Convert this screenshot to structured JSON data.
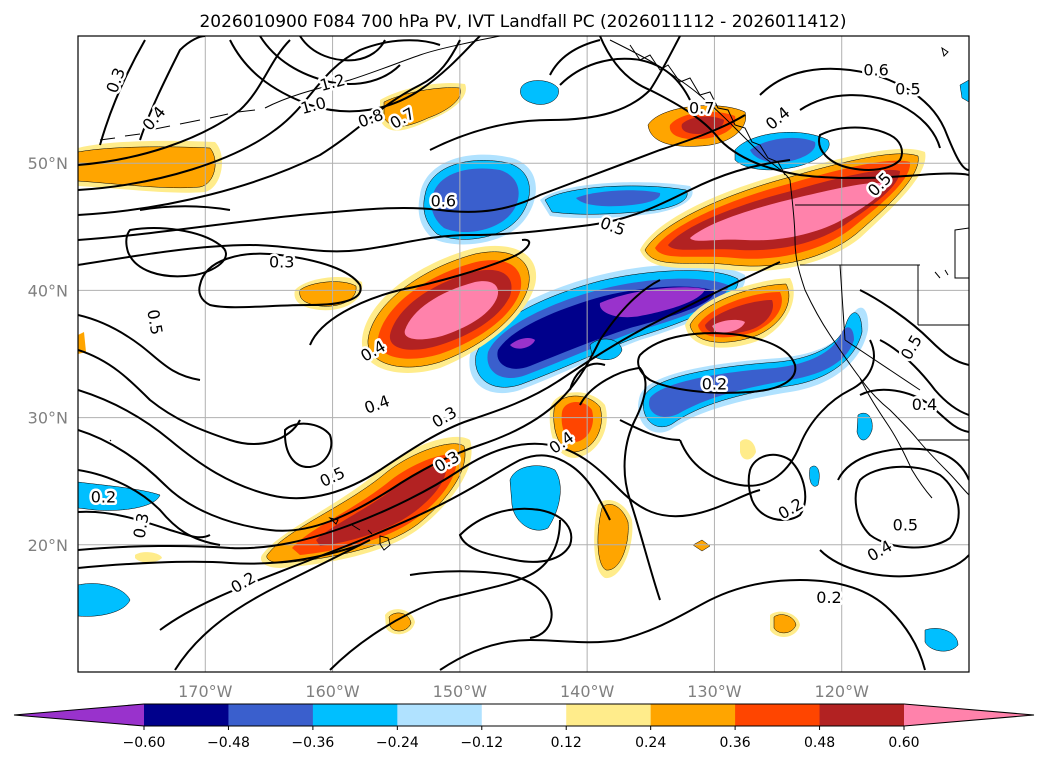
{
  "title": "2026010900 F084 700 hPa PV, IVT Landfall PC (2026011112 - 2026011412)",
  "map": {
    "lon_range": [
      -180,
      -110
    ],
    "lat_range": [
      10,
      60
    ],
    "lon_ticks": [
      {
        "value": -170,
        "label": "170°W"
      },
      {
        "value": -160,
        "label": "160°W"
      },
      {
        "value": -150,
        "label": "150°W"
      },
      {
        "value": -140,
        "label": "140°W"
      },
      {
        "value": -130,
        "label": "130°W"
      },
      {
        "value": -120,
        "label": "120°W"
      }
    ],
    "lat_ticks": [
      {
        "value": 20,
        "label": "20°N"
      },
      {
        "value": 30,
        "label": "30°N"
      },
      {
        "value": 40,
        "label": "40°N"
      },
      {
        "value": 50,
        "label": "50°N"
      }
    ],
    "grid": true
  },
  "colorbar": {
    "levels": [
      -0.6,
      -0.48,
      -0.36,
      -0.24,
      -0.12,
      0.12,
      0.24,
      0.36,
      0.48,
      0.6
    ],
    "tick_labels": [
      "−0.60",
      "−0.48",
      "−0.36",
      "−0.24",
      "−0.12",
      "0.12",
      "0.24",
      "0.36",
      "0.48",
      "0.60"
    ],
    "colors": [
      "#9932cc",
      "#00008b",
      "#3a5fcd",
      "#00bfff",
      "#b0e2ff",
      "#ffffff",
      "#ffec8b",
      "#ffa500",
      "#ff4500",
      "#b22222",
      "#ff82ab"
    ],
    "extend": "both"
  },
  "contour_labels": [
    {
      "text": "0.3",
      "lon": -177.0,
      "lat": 56.5,
      "rot": -70
    },
    {
      "text": "0.4",
      "lon": -174.0,
      "lat": 53.5,
      "rot": -50
    },
    {
      "text": "1.2",
      "lon": -160.0,
      "lat": 56.3,
      "rot": -15
    },
    {
      "text": "1.0",
      "lon": -161.5,
      "lat": 54.5,
      "rot": -15
    },
    {
      "text": "0.8",
      "lon": -157.0,
      "lat": 53.5,
      "rot": -20
    },
    {
      "text": "0.7",
      "lon": -154.5,
      "lat": 53.5,
      "rot": -30
    },
    {
      "text": "0.6",
      "lon": -151.3,
      "lat": 47.0,
      "rot": 0
    },
    {
      "text": "0.5",
      "lon": -138.0,
      "lat": 45.0,
      "rot": 20
    },
    {
      "text": "0.7",
      "lon": -131.0,
      "lat": 54.3,
      "rot": 0
    },
    {
      "text": "0.6",
      "lon": -117.3,
      "lat": 57.3,
      "rot": 0
    },
    {
      "text": "0.5",
      "lon": -114.8,
      "lat": 55.8,
      "rot": 0
    },
    {
      "text": "0.4",
      "lon": -125.0,
      "lat": 53.5,
      "rot": -40
    },
    {
      "text": "0.5",
      "lon": -117.0,
      "lat": 48.3,
      "rot": -45
    },
    {
      "text": "0.3",
      "lon": -164.0,
      "lat": 42.2,
      "rot": 0
    },
    {
      "text": "0.5",
      "lon": -174.0,
      "lat": 37.5,
      "rot": 80
    },
    {
      "text": "0.4",
      "lon": -156.8,
      "lat": 35.2,
      "rot": -30
    },
    {
      "text": "0.4",
      "lon": -156.5,
      "lat": 31.0,
      "rot": -20
    },
    {
      "text": "0.3",
      "lon": -151.2,
      "lat": 30.0,
      "rot": -30
    },
    {
      "text": "0.3",
      "lon": -151.0,
      "lat": 26.5,
      "rot": -30
    },
    {
      "text": "0.5",
      "lon": -160.0,
      "lat": 25.3,
      "rot": -25
    },
    {
      "text": "0.4",
      "lon": -142.0,
      "lat": 28.0,
      "rot": -35
    },
    {
      "text": "0.2",
      "lon": -130.0,
      "lat": 32.6,
      "rot": 0
    },
    {
      "text": "0.4",
      "lon": -113.5,
      "lat": 31.0,
      "rot": 0
    },
    {
      "text": "0.5",
      "lon": -114.5,
      "lat": 35.5,
      "rot": -60
    },
    {
      "text": "0.2",
      "lon": -178.0,
      "lat": 23.7,
      "rot": 0
    },
    {
      "text": "0.3",
      "lon": -175.0,
      "lat": 21.5,
      "rot": -80
    },
    {
      "text": "0.2",
      "lon": -167.0,
      "lat": 17.0,
      "rot": -30
    },
    {
      "text": "0.2",
      "lon": -124.0,
      "lat": 22.8,
      "rot": -30
    },
    {
      "text": "0.5",
      "lon": -115.0,
      "lat": 21.5,
      "rot": 0
    },
    {
      "text": "0.4",
      "lon": -117.0,
      "lat": 19.5,
      "rot": -30
    },
    {
      "text": "0.2",
      "lon": -121.0,
      "lat": 15.8,
      "rot": 0
    }
  ]
}
